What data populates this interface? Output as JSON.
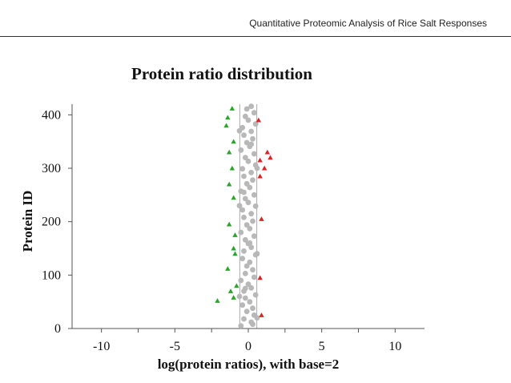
{
  "header": {
    "running_title": "Quantitative Proteomic Analysis of Rice Salt Responses"
  },
  "chart_data": {
    "type": "scatter",
    "title": "Protein ratio distribution",
    "xlabel": "log(protein ratios), with base=2",
    "ylabel": "Protein ID",
    "xlim": [
      -12,
      12
    ],
    "ylim": [
      0,
      420
    ],
    "x_ticks": [
      -10,
      -5,
      0,
      5,
      10
    ],
    "y_ticks": [
      0,
      100,
      200,
      300,
      400
    ],
    "grid": false,
    "legend": "none",
    "threshold_lines": [
      -0.58,
      0.58
    ],
    "colors": {
      "unchanged": "#b8b8b8",
      "down": "#2aa52a",
      "up": "#e02020",
      "threshold": "#aaaaaa"
    },
    "series": [
      {
        "values": [
          {
            "x": -0.5,
            "y": 5
          },
          {
            "x": 0.2,
            "y": 12
          },
          {
            "x": -0.3,
            "y": 18
          },
          {
            "x": 0.4,
            "y": 25
          },
          {
            "x": -0.1,
            "y": 32
          },
          {
            "x": 0.3,
            "y": 38
          },
          {
            "x": -0.4,
            "y": 44
          },
          {
            "x": 0.1,
            "y": 50
          },
          {
            "x": -0.2,
            "y": 57
          },
          {
            "x": 0.5,
            "y": 63
          },
          {
            "x": -0.3,
            "y": 70
          },
          {
            "x": 0.2,
            "y": 76
          },
          {
            "x": 0.0,
            "y": 83
          },
          {
            "x": -0.5,
            "y": 90
          },
          {
            "x": 0.4,
            "y": 96
          },
          {
            "x": -0.2,
            "y": 103
          },
          {
            "x": 0.3,
            "y": 110
          },
          {
            "x": -0.1,
            "y": 117
          },
          {
            "x": 0.1,
            "y": 124
          },
          {
            "x": -0.4,
            "y": 131
          },
          {
            "x": 0.5,
            "y": 138
          },
          {
            "x": -0.3,
            "y": 145
          },
          {
            "x": 0.2,
            "y": 152
          },
          {
            "x": 0.0,
            "y": 159
          },
          {
            "x": -0.2,
            "y": 166
          },
          {
            "x": 0.4,
            "y": 173
          },
          {
            "x": -0.5,
            "y": 180
          },
          {
            "x": 0.1,
            "y": 187
          },
          {
            "x": -0.1,
            "y": 194
          },
          {
            "x": 0.3,
            "y": 201
          },
          {
            "x": -0.3,
            "y": 208
          },
          {
            "x": 0.2,
            "y": 215
          },
          {
            "x": -0.4,
            "y": 222
          },
          {
            "x": 0.5,
            "y": 229
          },
          {
            "x": 0.0,
            "y": 236
          },
          {
            "x": -0.2,
            "y": 243
          },
          {
            "x": 0.4,
            "y": 250
          },
          {
            "x": -0.5,
            "y": 257
          },
          {
            "x": 0.1,
            "y": 264
          },
          {
            "x": -0.1,
            "y": 271
          },
          {
            "x": 0.3,
            "y": 278
          },
          {
            "x": -0.3,
            "y": 285
          },
          {
            "x": 0.2,
            "y": 292
          },
          {
            "x": -0.4,
            "y": 299
          },
          {
            "x": 0.5,
            "y": 306
          },
          {
            "x": 0.0,
            "y": 313
          },
          {
            "x": -0.2,
            "y": 320
          },
          {
            "x": 0.4,
            "y": 327
          },
          {
            "x": -0.5,
            "y": 334
          },
          {
            "x": 0.1,
            "y": 341
          },
          {
            "x": -0.1,
            "y": 348
          },
          {
            "x": 0.3,
            "y": 355
          },
          {
            "x": -0.3,
            "y": 362
          },
          {
            "x": 0.2,
            "y": 369
          },
          {
            "x": -0.4,
            "y": 376
          },
          {
            "x": 0.5,
            "y": 383
          },
          {
            "x": 0.0,
            "y": 390
          },
          {
            "x": -0.2,
            "y": 397
          },
          {
            "x": 0.4,
            "y": 404
          },
          {
            "x": -0.1,
            "y": 411
          },
          {
            "x": 0.2,
            "y": 416
          },
          {
            "x": 0.6,
            "y": 20
          },
          {
            "x": -0.6,
            "y": 60
          },
          {
            "x": 0.6,
            "y": 140
          },
          {
            "x": -0.6,
            "y": 230
          },
          {
            "x": 0.6,
            "y": 300
          },
          {
            "x": -0.6,
            "y": 370
          },
          {
            "x": 0.3,
            "y": 8
          },
          {
            "x": -0.2,
            "y": 75
          },
          {
            "x": 0.1,
            "y": 160
          },
          {
            "x": -0.3,
            "y": 255
          },
          {
            "x": 0.2,
            "y": 345
          }
        ]
      },
      {
        "values": [
          {
            "x": -2.1,
            "y": 52
          },
          {
            "x": -1.0,
            "y": 58
          },
          {
            "x": -1.2,
            "y": 70
          },
          {
            "x": -0.8,
            "y": 80
          },
          {
            "x": -1.4,
            "y": 112
          },
          {
            "x": -0.9,
            "y": 140
          },
          {
            "x": -1.0,
            "y": 150
          },
          {
            "x": -0.9,
            "y": 175
          },
          {
            "x": -1.3,
            "y": 195
          },
          {
            "x": -1.0,
            "y": 245
          },
          {
            "x": -1.3,
            "y": 270
          },
          {
            "x": -1.1,
            "y": 300
          },
          {
            "x": -1.3,
            "y": 330
          },
          {
            "x": -1.0,
            "y": 350
          },
          {
            "x": -1.5,
            "y": 380
          },
          {
            "x": -1.4,
            "y": 395
          },
          {
            "x": -1.1,
            "y": 412
          }
        ]
      },
      {
        "values": [
          {
            "x": 0.9,
            "y": 25
          },
          {
            "x": 0.8,
            "y": 95
          },
          {
            "x": 0.9,
            "y": 205
          },
          {
            "x": 0.8,
            "y": 285
          },
          {
            "x": 1.1,
            "y": 300
          },
          {
            "x": 0.8,
            "y": 315
          },
          {
            "x": 1.3,
            "y": 330
          },
          {
            "x": 1.5,
            "y": 320
          },
          {
            "x": 0.7,
            "y": 390
          }
        ]
      }
    ]
  }
}
